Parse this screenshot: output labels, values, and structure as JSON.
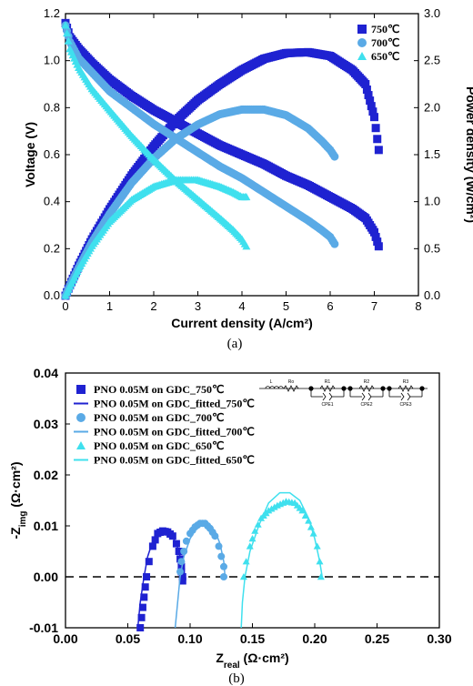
{
  "colors": {
    "c750": "#1f22d1",
    "c700": "#5aaae6",
    "c650": "#3fe0ee"
  },
  "panel_labels": {
    "a": "(a)",
    "b": "(b)"
  },
  "circuit": {
    "labels": [
      "L",
      "Ro",
      "R1",
      "CPE1",
      "R2",
      "CPE2",
      "R3",
      "CPE3"
    ]
  },
  "chart_data": [
    {
      "type": "line",
      "panel": "a",
      "xlabel": "Current density (A/cm²)",
      "ylabel": "Voltage (V)",
      "y2label": "Power density (W/cm²)",
      "xlim": [
        0,
        8
      ],
      "ylim": [
        0,
        1.2
      ],
      "y2lim": [
        0,
        3.0
      ],
      "xticks": [
        "0",
        "1",
        "2",
        "3",
        "4",
        "5",
        "6",
        "7",
        "8"
      ],
      "yticks": [
        "0.0",
        "0.2",
        "0.4",
        "0.6",
        "0.8",
        "1.0",
        "1.2"
      ],
      "y2ticks": [
        "0.0",
        "0.5",
        "1.0",
        "1.5",
        "2.0",
        "2.5",
        "3.0"
      ],
      "legend": {
        "placement": "top-right",
        "entries": [
          "750℃",
          "700℃",
          "650℃"
        ]
      },
      "series": [
        {
          "name": "750℃",
          "color": "#1f22d1",
          "marker": "square",
          "axis": "left",
          "x": [
            0,
            0.1,
            0.3,
            0.6,
            1,
            1.5,
            2,
            2.5,
            3,
            3.5,
            4,
            4.5,
            5,
            5.5,
            6,
            6.5,
            6.8,
            7.0,
            7.1
          ],
          "y": [
            1.16,
            1.1,
            1.05,
            0.99,
            0.92,
            0.85,
            0.79,
            0.74,
            0.69,
            0.64,
            0.6,
            0.56,
            0.51,
            0.47,
            0.42,
            0.37,
            0.33,
            0.27,
            0.21
          ]
        },
        {
          "name": "750℃",
          "color": "#1f22d1",
          "marker": "square",
          "axis": "right",
          "x": [
            0,
            0.1,
            0.3,
            0.6,
            1,
            1.5,
            2,
            2.5,
            3,
            3.5,
            4,
            4.5,
            5,
            5.5,
            6,
            6.5,
            6.8,
            7.0,
            7.1
          ],
          "y": [
            0.0,
            0.11,
            0.32,
            0.6,
            0.92,
            1.28,
            1.59,
            1.86,
            2.08,
            2.25,
            2.4,
            2.52,
            2.58,
            2.59,
            2.55,
            2.4,
            2.25,
            1.9,
            1.55
          ]
        },
        {
          "name": "700℃",
          "color": "#5aaae6",
          "marker": "circle",
          "axis": "left",
          "x": [
            0,
            0.1,
            0.3,
            0.6,
            1,
            1.5,
            2,
            2.5,
            3,
            3.5,
            4,
            4.5,
            5,
            5.5,
            5.8,
            6.0,
            6.1
          ],
          "y": [
            1.15,
            1.08,
            1.01,
            0.95,
            0.87,
            0.8,
            0.73,
            0.67,
            0.61,
            0.55,
            0.5,
            0.44,
            0.38,
            0.32,
            0.28,
            0.25,
            0.22
          ]
        },
        {
          "name": "700℃",
          "color": "#5aaae6",
          "marker": "circle",
          "axis": "right",
          "x": [
            0,
            0.1,
            0.3,
            0.6,
            1,
            1.5,
            2,
            2.5,
            3,
            3.5,
            4,
            4.5,
            5,
            5.5,
            5.8,
            6.0,
            6.1
          ],
          "y": [
            0.0,
            0.11,
            0.3,
            0.57,
            0.87,
            1.2,
            1.46,
            1.67,
            1.82,
            1.93,
            1.98,
            1.98,
            1.92,
            1.78,
            1.65,
            1.55,
            1.48
          ]
        },
        {
          "name": "650℃",
          "color": "#3fe0ee",
          "marker": "triangle",
          "axis": "left",
          "x": [
            0,
            0.1,
            0.3,
            0.6,
            1,
            1.5,
            2,
            2.5,
            3,
            3.5,
            3.8,
            4.0,
            4.1
          ],
          "y": [
            1.15,
            1.05,
            0.97,
            0.88,
            0.79,
            0.68,
            0.58,
            0.49,
            0.41,
            0.33,
            0.28,
            0.24,
            0.21
          ]
        },
        {
          "name": "650℃",
          "color": "#3fe0ee",
          "marker": "triangle",
          "axis": "right",
          "x": [
            0,
            0.1,
            0.3,
            0.6,
            1,
            1.5,
            2,
            2.5,
            3,
            3.5,
            3.8,
            4.0,
            4.1
          ],
          "y": [
            0.0,
            0.1,
            0.29,
            0.53,
            0.79,
            1.02,
            1.16,
            1.23,
            1.23,
            1.16,
            1.1,
            1.05,
            1.05
          ]
        }
      ]
    },
    {
      "type": "scatter",
      "panel": "b",
      "xlabel": "Z",
      "xlabel_sub": "real",
      "xlabel_unit": " (Ω·cm²)",
      "ylabel": "-Z",
      "ylabel_sub": "img",
      "ylabel_unit": " (Ω·cm²)",
      "xlim": [
        0,
        0.3
      ],
      "ylim": [
        -0.01,
        0.04
      ],
      "xticks": [
        "0.00",
        "0.05",
        "0.10",
        "0.15",
        "0.20",
        "0.25",
        "0.30"
      ],
      "yticks": [
        "-0.01",
        "0.00",
        "0.01",
        "0.02",
        "0.03",
        "0.04"
      ],
      "reference_line": {
        "y": 0,
        "style": "dashed"
      },
      "legend": {
        "placement": "top-left",
        "entries": [
          "PNO 0.05M on GDC_750℃",
          "PNO 0.05M on GDC_fitted_750℃",
          "PNO 0.05M on GDC_700℃",
          "PNO 0.05M on GDC_fitted_700℃",
          "PNO 0.05M on GDC_650℃",
          "PNO 0.05M on GDC_fitted_650℃"
        ]
      },
      "series": [
        {
          "name": "PNO 0.05M on GDC_750℃",
          "color": "#1f22d1",
          "marker": "square",
          "x": [
            0.06,
            0.061,
            0.062,
            0.063,
            0.064,
            0.065,
            0.067,
            0.07,
            0.074,
            0.078,
            0.082,
            0.086,
            0.089,
            0.091,
            0.092,
            0.093,
            0.093,
            0.094,
            0.094
          ],
          "y": [
            -0.01,
            -0.008,
            -0.006,
            -0.004,
            -0.002,
            0.0,
            0.003,
            0.006,
            0.0085,
            0.009,
            0.0088,
            0.008,
            0.0065,
            0.005,
            0.0035,
            0.002,
            0.001,
            0.0,
            -0.0008
          ]
        },
        {
          "name": "PNO 0.05M on GDC_fitted_750℃",
          "color": "#1f22d1",
          "marker": "none",
          "x": [
            0.058,
            0.06,
            0.063,
            0.066,
            0.07,
            0.075,
            0.08,
            0.085,
            0.089,
            0.092,
            0.094,
            0.095
          ],
          "y": [
            -0.01,
            -0.005,
            0.0,
            0.004,
            0.007,
            0.0088,
            0.009,
            0.0082,
            0.0065,
            0.004,
            0.0015,
            0.0
          ]
        },
        {
          "name": "PNO 0.05M on GDC_700℃",
          "color": "#5aaae6",
          "marker": "circle",
          "x": [
            0.092,
            0.093,
            0.095,
            0.097,
            0.1,
            0.104,
            0.108,
            0.112,
            0.116,
            0.12,
            0.123,
            0.125,
            0.127,
            0.127
          ],
          "y": [
            0.001,
            0.003,
            0.005,
            0.007,
            0.0085,
            0.0098,
            0.0105,
            0.0105,
            0.0095,
            0.008,
            0.006,
            0.004,
            0.002,
            0.0
          ]
        },
        {
          "name": "PNO 0.05M on GDC_fitted_700℃",
          "color": "#5aaae6",
          "marker": "none",
          "x": [
            0.088,
            0.09,
            0.092,
            0.095,
            0.1,
            0.105,
            0.11,
            0.115,
            0.12,
            0.124,
            0.127,
            0.128
          ],
          "y": [
            -0.01,
            -0.005,
            0.0,
            0.004,
            0.0075,
            0.0095,
            0.0105,
            0.0102,
            0.009,
            0.0065,
            0.003,
            0.0
          ]
        },
        {
          "name": "PNO 0.05M on GDC_650℃",
          "color": "#3fe0ee",
          "marker": "triangle",
          "x": [
            0.143,
            0.145,
            0.148,
            0.152,
            0.157,
            0.163,
            0.17,
            0.177,
            0.184,
            0.19,
            0.195,
            0.199,
            0.202,
            0.204,
            0.205
          ],
          "y": [
            0.0,
            0.003,
            0.006,
            0.009,
            0.0115,
            0.013,
            0.014,
            0.0148,
            0.0145,
            0.013,
            0.011,
            0.0085,
            0.006,
            0.003,
            0.0
          ]
        },
        {
          "name": "PNO 0.05M on GDC_fitted_650℃",
          "color": "#3fe0ee",
          "marker": "none",
          "x": [
            0.141,
            0.142,
            0.144,
            0.148,
            0.155,
            0.163,
            0.172,
            0.18,
            0.188,
            0.195,
            0.2,
            0.204,
            0.206
          ],
          "y": [
            -0.01,
            -0.005,
            0.0,
            0.005,
            0.01,
            0.0145,
            0.0165,
            0.0165,
            0.015,
            0.0115,
            0.0075,
            0.003,
            0.0
          ]
        }
      ]
    }
  ]
}
